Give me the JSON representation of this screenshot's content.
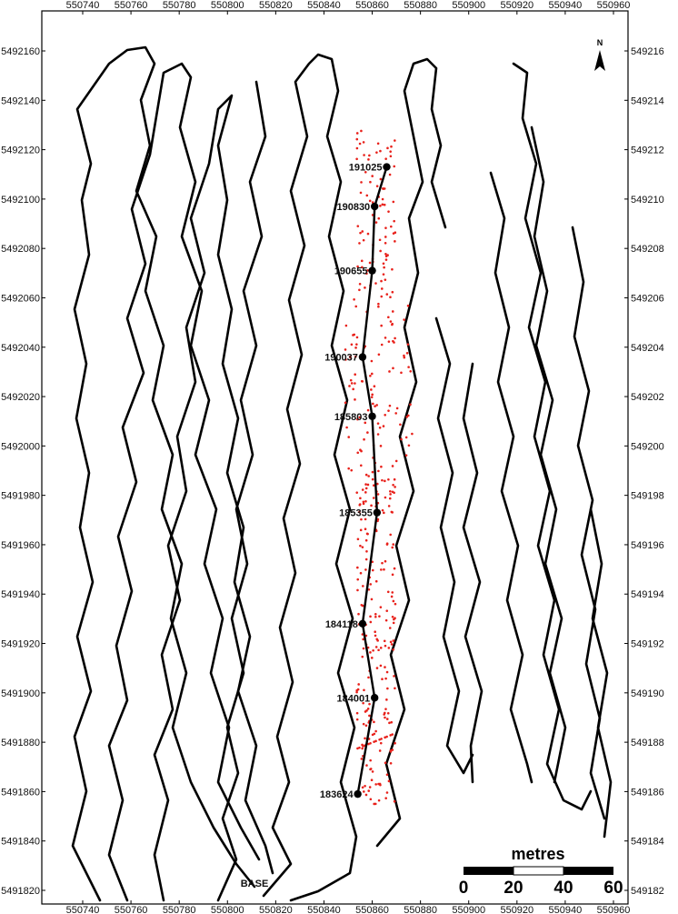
{
  "map": {
    "north_label": "N",
    "base_label": "BASE",
    "x_ticks": [
      "550740",
      "550760",
      "550780",
      "550800",
      "550820",
      "550840",
      "550860",
      "550880",
      "550900",
      "550920",
      "550940",
      "550960"
    ],
    "y_ticks_left": [
      "5491820",
      "5491840",
      "5491860",
      "5491880",
      "5491900",
      "5491920",
      "5491940",
      "5491960",
      "5491980",
      "5492000",
      "5492020",
      "5492040",
      "5492060",
      "5492080",
      "5492100",
      "5492120",
      "5492140",
      "5492160"
    ],
    "y_ticks_right": [
      "549182",
      "549184",
      "549186",
      "549188",
      "549190",
      "549192",
      "549194",
      "549196",
      "549198",
      "549200",
      "549202",
      "549204",
      "549206",
      "549208",
      "549210",
      "549212",
      "549214",
      "549216"
    ],
    "track_color": "#000000",
    "gps_point_color": "#e8201a",
    "contour_color": "#000000"
  },
  "waypoints": [
    {
      "label": "191025",
      "x": 550866,
      "y": 5492113
    },
    {
      "label": "190830",
      "x": 550861,
      "y": 5492097
    },
    {
      "label": "190655",
      "x": 550860,
      "y": 5492071
    },
    {
      "label": "190037",
      "x": 550856,
      "y": 5492036
    },
    {
      "label": "185803",
      "x": 550860,
      "y": 5492012
    },
    {
      "label": "185355",
      "x": 550862,
      "y": 5491973
    },
    {
      "label": "184118",
      "x": 550856,
      "y": 5491928
    },
    {
      "label": "184001",
      "x": 550861,
      "y": 5491898
    },
    {
      "label": "183624",
      "x": 550854,
      "y": 5491859
    }
  ],
  "scale_bar": {
    "title": "metres",
    "labels": [
      "0",
      "20",
      "40",
      "60"
    ]
  }
}
